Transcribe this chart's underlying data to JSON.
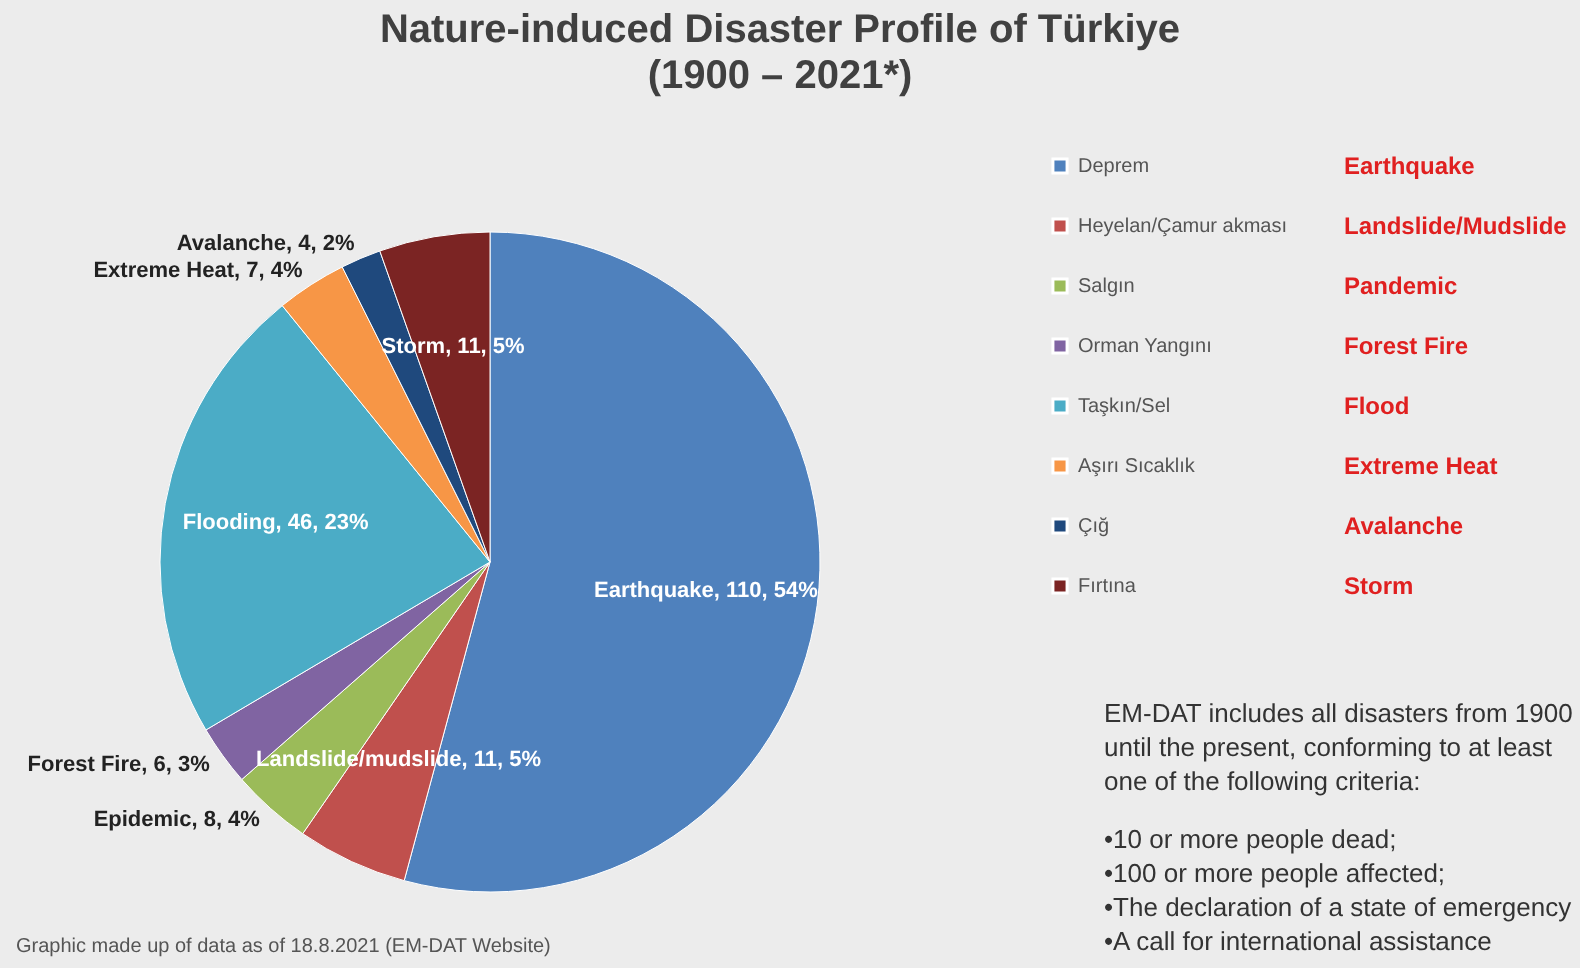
{
  "chart_data": {
    "type": "pie",
    "title": "Nature-induced Disaster Profile of Türkiye",
    "subtitle": "(1900 – 2021*)",
    "categories": [
      "Deprem",
      "Heyelan/Çamur akması",
      "Salgın",
      "Orman Yangını",
      "Taşkın/Sel",
      "Aşırı Sıcaklık",
      "Çığ",
      "Fırtına"
    ],
    "values": [
      110,
      11,
      8,
      6,
      46,
      7,
      4,
      11
    ],
    "colors": [
      "#4f81bd",
      "#c0504d",
      "#9bbb59",
      "#8064a2",
      "#4bacc6",
      "#f79646",
      "#1f497d",
      "#7b2423"
    ],
    "value_labels": [
      "Earthquake, 110, 54%",
      "Landslide/mudslide, 11, 5%",
      "Epidemic, 8, 4%",
      "Forest Fire, 6, 3%",
      "Flooding, 46, 23%",
      "Extreme Heat, 7, 4%",
      "Avalanche, 4, 2%",
      "Storm, 11, 5%"
    ],
    "legend": "right",
    "annotations": [
      "Earthquake",
      "Landslide/Mudslide",
      "Pandemic",
      "Forest Fire",
      "Flood",
      "Extreme Heat",
      "Avalanche",
      "Storm",
      "EM-DAT includes all disasters from 1900 until the present, conforming to at least one of the following criteria:",
      "•10 or more people dead;",
      "•100 or more people affected;",
      "•The declaration of a state of emergency",
      "•A call for international assistance",
      "Graphic made up of  data as of 18.8.2021 (EM-DAT Website)"
    ]
  }
}
